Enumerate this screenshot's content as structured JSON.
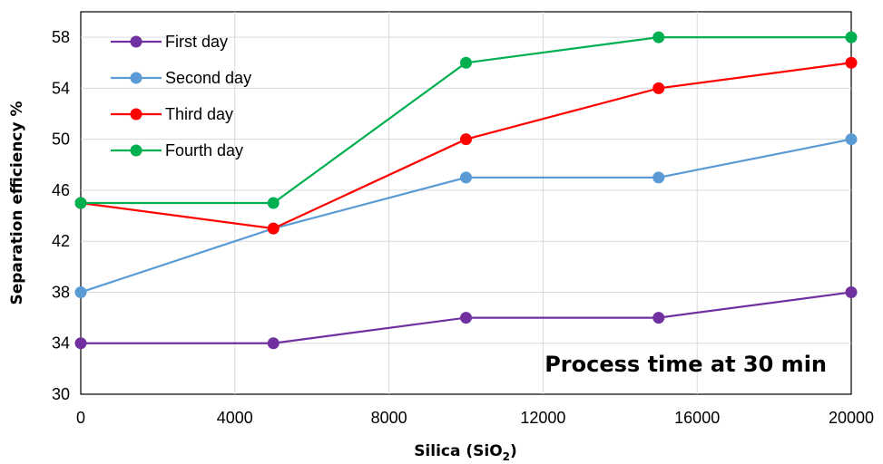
{
  "chart_data": {
    "type": "line",
    "title": "",
    "xlabel_main": "Silica (SiO",
    "xlabel_sub": "2",
    "xlabel_end": ")",
    "ylabel": "Separation efficiency %",
    "annotation": "Process time at 30 min",
    "xlim": [
      0,
      20000
    ],
    "ylim": [
      30,
      60
    ],
    "x_ticks": [
      "0",
      "4000",
      "8000",
      "12000",
      "16000",
      "20000"
    ],
    "y_ticks": [
      "30",
      "34",
      "38",
      "42",
      "46",
      "50",
      "54",
      "58"
    ],
    "x": [
      0,
      5000,
      10000,
      15000,
      20000
    ],
    "grid": "vertical",
    "legend_position": "top-left",
    "series": [
      {
        "name": "First day",
        "color": "#7030A0",
        "values": [
          34,
          34,
          36,
          36,
          38
        ]
      },
      {
        "name": "Second day",
        "color": "#5B9BD5",
        "values": [
          38,
          43,
          47,
          47,
          50
        ]
      },
      {
        "name": "Third day",
        "color": "#FF0000",
        "values": [
          45,
          43,
          50,
          54,
          56
        ]
      },
      {
        "name": "Fourth day",
        "color": "#00B050",
        "values": [
          45,
          45,
          56,
          58,
          58
        ]
      }
    ]
  }
}
